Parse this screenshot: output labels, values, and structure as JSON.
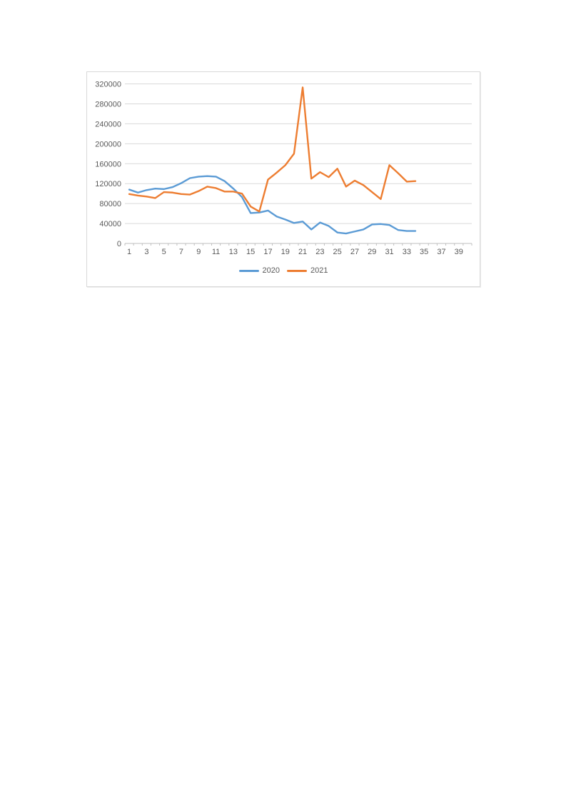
{
  "page": {
    "background": "#ffffff"
  },
  "chart": {
    "border_color": "#d9d9d9",
    "background": "#ffffff",
    "gridline_color": "#d9d9d9",
    "axis_color": "#bfbfbf",
    "tick_label_color": "#595959",
    "legend_labels": [
      "2020",
      "2021"
    ]
  },
  "chart_data": {
    "type": "line",
    "title": "",
    "xlabel": "",
    "ylabel": "",
    "grid": true,
    "legend_position": "bottom",
    "ylim": [
      0,
      320000
    ],
    "ytick_step": 40000,
    "yticks": [
      0,
      40000,
      80000,
      120000,
      160000,
      200000,
      240000,
      280000,
      320000
    ],
    "x_categories_total": 40,
    "xtick_labels": [
      1,
      3,
      5,
      7,
      9,
      11,
      13,
      15,
      17,
      19,
      21,
      23,
      25,
      27,
      29,
      31,
      33,
      35,
      37,
      39
    ],
    "x": [
      1,
      2,
      3,
      4,
      5,
      6,
      7,
      8,
      9,
      10,
      11,
      12,
      13,
      14,
      15,
      16,
      17,
      18,
      19,
      20,
      21,
      22,
      23,
      24,
      25,
      26,
      27,
      28,
      29,
      30,
      31,
      32,
      33,
      34
    ],
    "series": [
      {
        "name": "2020",
        "color": "#5B9BD5",
        "values": [
          108000,
          102000,
          107000,
          110000,
          109000,
          113000,
          121000,
          131000,
          134000,
          135000,
          134000,
          125000,
          110000,
          93000,
          61000,
          62000,
          66000,
          54000,
          48000,
          41000,
          44000,
          28000,
          42000,
          35000,
          22000,
          20000,
          24000,
          28000,
          38000,
          39000,
          37000,
          27000,
          25000,
          25000
        ]
      },
      {
        "name": "2021",
        "color": "#ED7D31",
        "values": [
          99000,
          96000,
          94000,
          91000,
          103000,
          102000,
          99000,
          98000,
          105000,
          114000,
          111000,
          104000,
          104000,
          100000,
          74000,
          64000,
          128000,
          142000,
          157000,
          180000,
          313000,
          130000,
          143000,
          133000,
          150000,
          114000,
          126000,
          117000,
          103000,
          89000,
          157000,
          141000,
          124000,
          125000
        ]
      }
    ]
  }
}
